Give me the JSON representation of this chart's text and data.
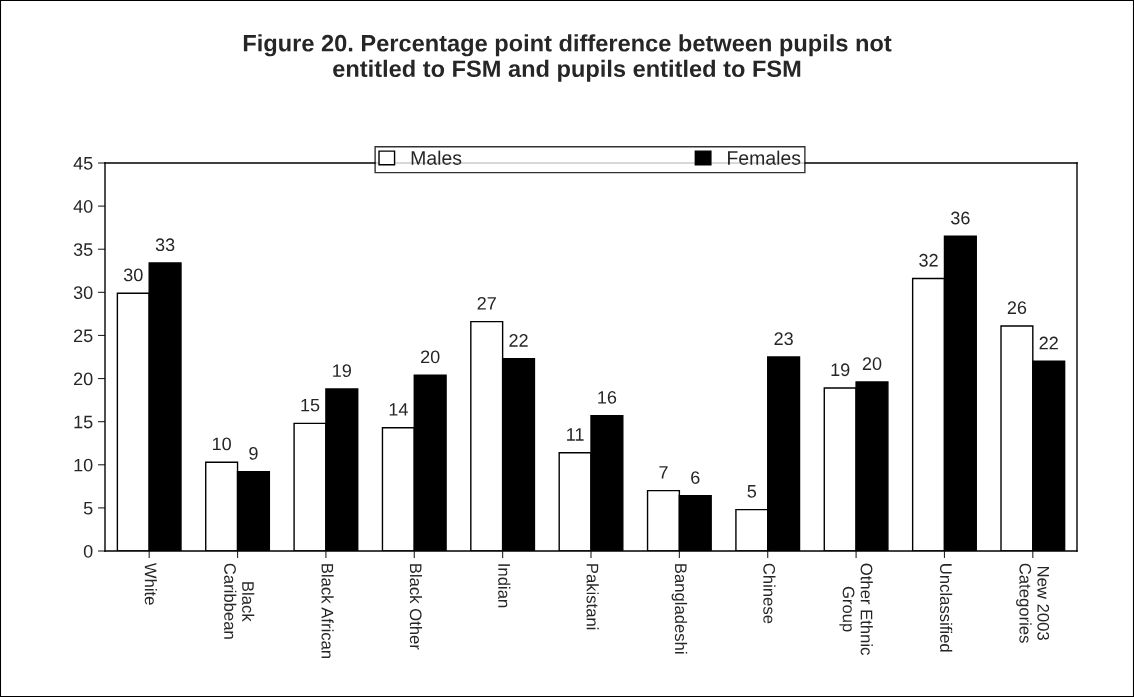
{
  "chart_data": {
    "type": "bar",
    "title": "Figure 20. Percentage point difference between pupils not\nentitled to FSM and pupils entitled to FSM",
    "categories": [
      "White",
      "Black\nCaribbean",
      "Black African",
      "Black Other",
      "Indian",
      "Pakistani",
      "Bangladeshi",
      "Chinese",
      "Other Ethnic\nGroup",
      "Unclassified",
      "New 2003\nCategories"
    ],
    "series": [
      {
        "name": "Males",
        "color": "#ffffff",
        "values": [
          29.9,
          10.3,
          14.8,
          14.3,
          26.6,
          11.4,
          7.0,
          4.8,
          18.9,
          31.6,
          26.1
        ],
        "value_labels": [
          "30",
          "10",
          "15",
          "14",
          "27",
          "11",
          "7",
          "5",
          "19",
          "32",
          "26"
        ]
      },
      {
        "name": "Females",
        "color": "#000000",
        "values": [
          33.4,
          9.2,
          18.8,
          20.4,
          22.3,
          15.7,
          6.4,
          22.5,
          19.6,
          36.5,
          22.0
        ],
        "value_labels": [
          "33",
          "9",
          "19",
          "20",
          "22",
          "16",
          "6",
          "23",
          "20",
          "36",
          "22"
        ]
      }
    ],
    "ylim": [
      0,
      45
    ],
    "yticks": [
      0,
      5,
      10,
      15,
      20,
      25,
      30,
      35,
      40,
      45
    ],
    "grid": false,
    "legend": "top"
  }
}
